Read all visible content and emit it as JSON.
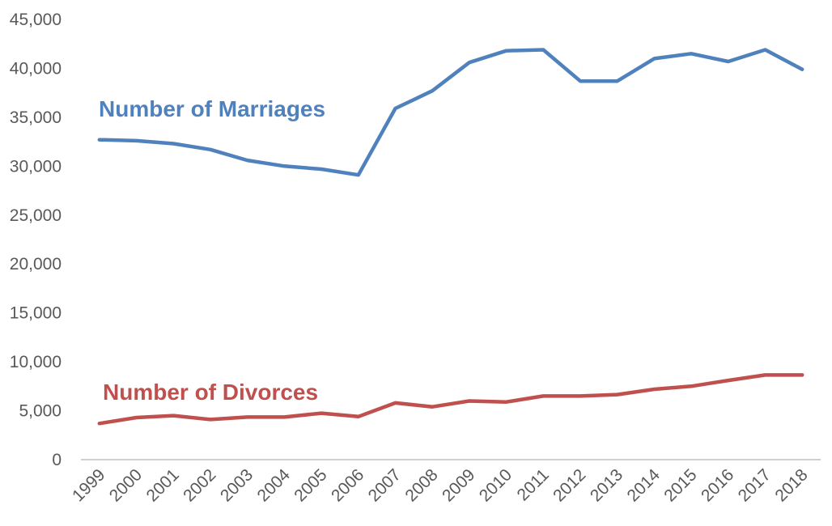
{
  "chart_data": {
    "type": "line",
    "title": "",
    "xlabel": "",
    "ylabel": "",
    "x": [
      "1999",
      "2000",
      "2001",
      "2002",
      "2003",
      "2004",
      "2005",
      "2006",
      "2007",
      "2008",
      "2009",
      "2010",
      "2011",
      "2012",
      "2013",
      "2014",
      "2015",
      "2016",
      "2017",
      "2018"
    ],
    "ylim": [
      0,
      45000
    ],
    "y_ticks": [
      "0",
      "5,000",
      "10,000",
      "15,000",
      "20,000",
      "25,000",
      "30,000",
      "35,000",
      "40,000",
      "45,000"
    ],
    "grid": false,
    "legend": "none (series labels drawn inline)",
    "series": [
      {
        "name": "Number of Marriages",
        "color": "#4F81BD",
        "values": [
          32700,
          32600,
          32300,
          31700,
          30600,
          30000,
          29700,
          29100,
          35900,
          37700,
          40600,
          41800,
          41900,
          38700,
          38700,
          41000,
          41500,
          40700,
          41900,
          39900
        ]
      },
      {
        "name": "Number of Divorces",
        "color": "#C0504D",
        "values": [
          3700,
          4300,
          4500,
          4100,
          4350,
          4350,
          4750,
          4400,
          5800,
          5400,
          6000,
          5900,
          6500,
          6500,
          6650,
          7200,
          7500,
          8100,
          8650,
          8650
        ]
      }
    ]
  }
}
